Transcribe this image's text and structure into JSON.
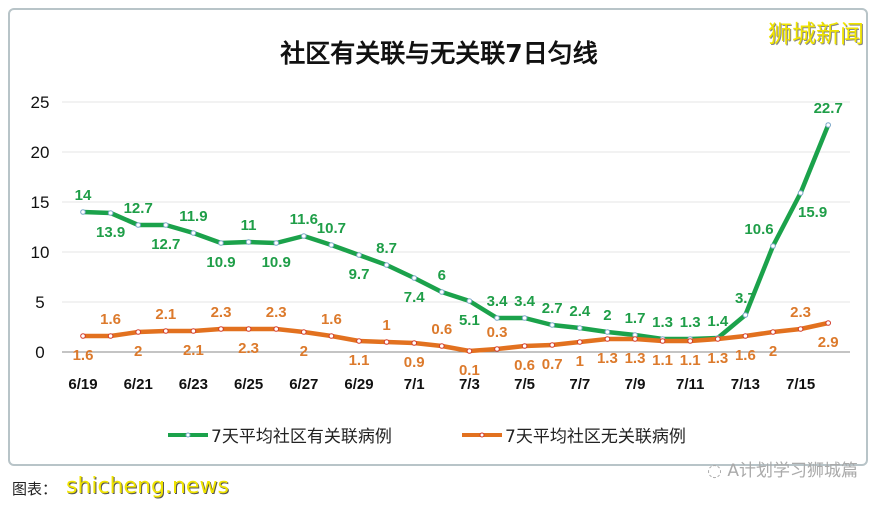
{
  "watermark_top": "狮城新闻",
  "watermark_bottom": "shicheng.news",
  "credit": "图表：",
  "wechat_tag": "A计划学习狮城篇",
  "chart_data": {
    "type": "line",
    "title": "社区有关联与无关联7日匀线",
    "xlabel": "",
    "ylabel": "",
    "ylim": [
      0,
      25
    ],
    "yticks": [
      "0",
      "5",
      "10",
      "15",
      "20",
      "25"
    ],
    "grid": true,
    "legend_position": "bottom",
    "x": [
      "6/19",
      "6/20",
      "6/21",
      "6/22",
      "6/23",
      "6/24",
      "6/25",
      "6/26",
      "6/27",
      "6/28",
      "6/29",
      "6/30",
      "7/1",
      "7/2",
      "7/3",
      "7/4",
      "7/5",
      "7/6",
      "7/7",
      "7/8",
      "7/9",
      "7/10",
      "7/11",
      "7/12",
      "7/13",
      "7/14",
      "7/15",
      "7/16"
    ],
    "xtick_labels": [
      "6/19",
      "6/21",
      "6/23",
      "6/25",
      "6/27",
      "6/29",
      "7/1",
      "7/3",
      "7/5",
      "7/7",
      "7/9",
      "7/11",
      "7/13",
      "7/15"
    ],
    "series": [
      {
        "name": "7天平均社区有关联病例",
        "color": "#1ba24b",
        "label_color": "#1f9e48",
        "values": [
          14,
          13.9,
          12.7,
          12.7,
          11.9,
          10.9,
          11,
          10.9,
          11.6,
          10.7,
          9.7,
          8.7,
          7.4,
          6,
          5.1,
          3.4,
          3.4,
          2.7,
          2.4,
          2,
          1.7,
          1.3,
          1.3,
          1.4,
          3.7,
          10.6,
          15.9,
          22.7
        ]
      },
      {
        "name": "7天平均社区无关联病例",
        "color": "#e2711f",
        "label_color": "#dc7a2c",
        "values": [
          1.6,
          1.6,
          2,
          2.1,
          2.1,
          2.3,
          2.3,
          2.3,
          2,
          1.6,
          1.1,
          1,
          0.9,
          0.6,
          0.1,
          0.3,
          0.6,
          0.7,
          1,
          1.3,
          1.3,
          1.1,
          1.1,
          1.3,
          1.6,
          2,
          2.3,
          2.9
        ]
      }
    ]
  }
}
